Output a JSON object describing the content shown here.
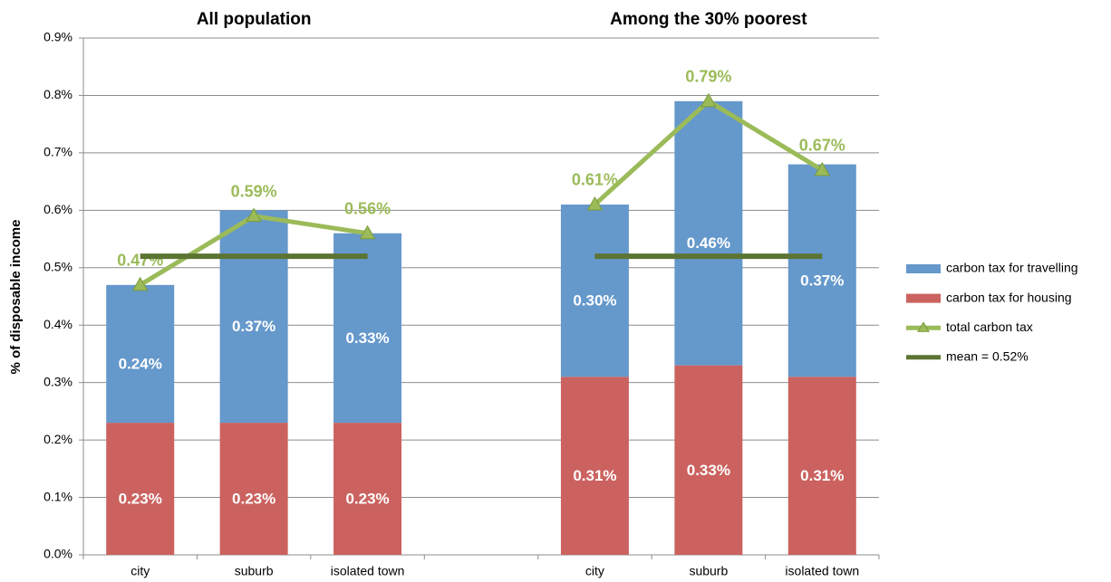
{
  "chart_data": {
    "type": "stacked-bar-line",
    "group_titles": [
      "All population",
      "Among the 30% poorest"
    ],
    "y_label": "% of disposable income",
    "categories": [
      "city",
      "suburb",
      "isolated town",
      null,
      "city",
      "suburb",
      "isolated town"
    ],
    "series": [
      {
        "name": "carbon tax for travelling",
        "kind": "bar",
        "color": "#6598cb",
        "values": [
          0.24,
          0.37,
          0.33,
          null,
          0.3,
          0.46,
          0.37
        ],
        "value_labels": [
          "0.24%",
          "0.37%",
          "0.33%",
          null,
          "0.30%",
          "0.46%",
          "0.37%"
        ]
      },
      {
        "name": "carbon tax for housing",
        "kind": "bar",
        "color": "#cb625f",
        "values": [
          0.23,
          0.23,
          0.23,
          null,
          0.31,
          0.33,
          0.31
        ],
        "value_labels": [
          "0.23%",
          "0.23%",
          "0.23%",
          null,
          "0.31%",
          "0.33%",
          "0.31%"
        ]
      },
      {
        "name": "total carbon tax",
        "kind": "line",
        "color": "#9bbb59",
        "marker": "triangle",
        "values": [
          0.47,
          0.59,
          0.56,
          null,
          0.61,
          0.79,
          0.67
        ],
        "value_labels": [
          "0.47%",
          "0.59%",
          "0.56%",
          null,
          "0.61%",
          "0.79%",
          "0.67%"
        ]
      },
      {
        "name": "mean = 0.52%",
        "kind": "line",
        "color": "#5c7432",
        "values": [
          0.52,
          0.52,
          0.52,
          null,
          0.52,
          0.52,
          0.52
        ]
      }
    ],
    "ylim": [
      0,
      0.9
    ],
    "yticks": [
      {
        "value": 0,
        "label": "0.0%"
      },
      {
        "value": 0.1,
        "label": "0.1%"
      },
      {
        "value": 0.2,
        "label": "0.2%"
      },
      {
        "value": 0.3,
        "label": "0.3%"
      },
      {
        "value": 0.4,
        "label": "0.4%"
      },
      {
        "value": 0.5,
        "label": "0.5%"
      },
      {
        "value": 0.6,
        "label": "0.6%"
      },
      {
        "value": 0.7,
        "label": "0.7%"
      },
      {
        "value": 0.8,
        "label": "0.8%"
      },
      {
        "value": 0.9,
        "label": "0.9%"
      }
    ],
    "grid": true,
    "legend": "right"
  }
}
